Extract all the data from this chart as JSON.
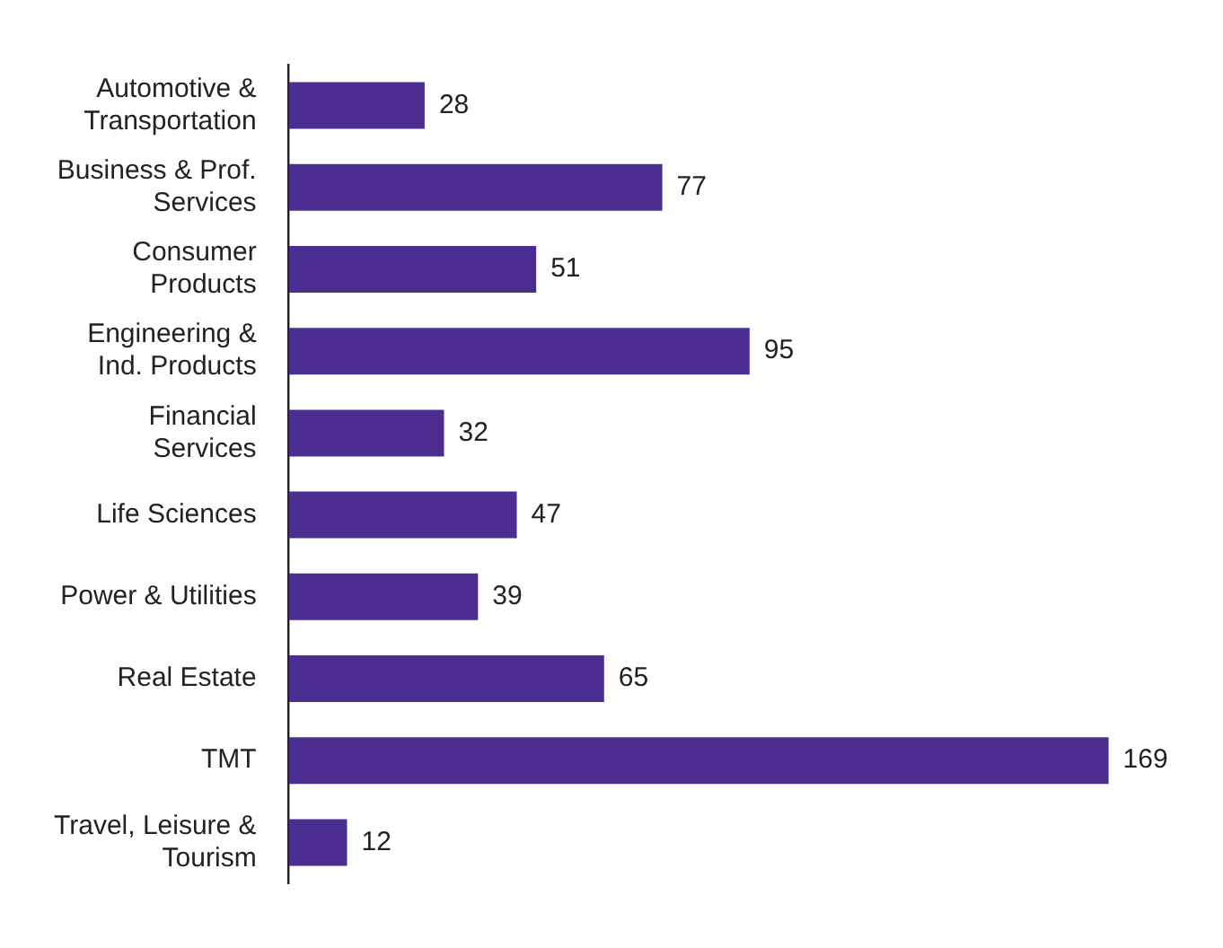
{
  "chart_data": {
    "type": "bar",
    "orientation": "horizontal",
    "categories": [
      "Automotive &\nTransportation",
      "Business & Prof.\nServices",
      "Consumer\nProducts",
      "Engineering &\nInd. Products",
      "Financial\nServices",
      "Life Sciences",
      "Power & Utilities",
      "Real Estate",
      "TMT",
      "Travel, Leisure &\nTourism"
    ],
    "values": [
      28,
      77,
      51,
      95,
      32,
      47,
      39,
      65,
      169,
      12
    ],
    "color": "#4b2e8f",
    "tick_labels": "y",
    "grid": false,
    "legend": false,
    "data_labels": true
  }
}
